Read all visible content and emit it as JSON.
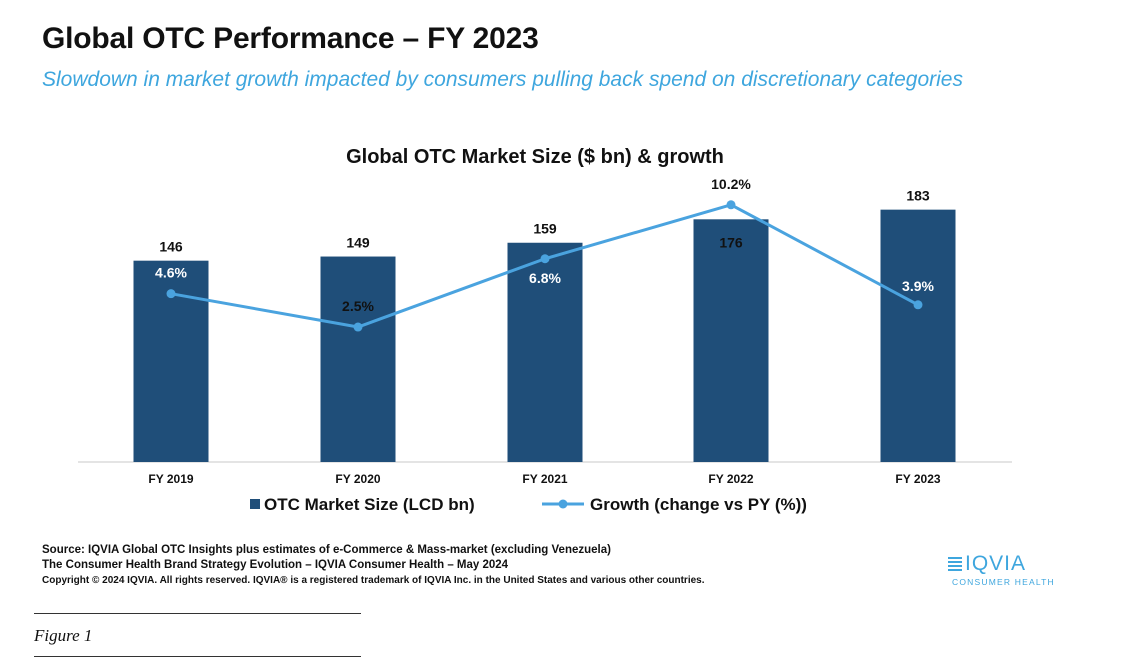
{
  "header": {
    "title": "Global OTC Performance – FY 2023",
    "subtitle": "Slowdown in market growth impacted by consumers pulling back spend on discretionary categories"
  },
  "chart_data": {
    "type": "bar",
    "title": "Global OTC Market Size ($ bn) & growth",
    "categories": [
      "FY 2019",
      "FY 2020",
      "FY 2021",
      "FY 2022",
      "FY 2023"
    ],
    "series": [
      {
        "name": "OTC Market Size (LCD bn)",
        "type": "bar",
        "values": [
          146,
          149,
          159,
          176,
          183
        ],
        "labels": [
          "146",
          "149",
          "159",
          "176",
          "183"
        ],
        "color": "#1f4e79"
      },
      {
        "name": "Growth (change vs PY (%))",
        "type": "line",
        "values": [
          4.6,
          2.5,
          6.8,
          10.2,
          3.9
        ],
        "labels": [
          "4.6%",
          "2.5%",
          "6.8%",
          "10.2%",
          "3.9%"
        ],
        "color": "#4aa3df"
      }
    ],
    "bar_axis_range": [
      0,
      190
    ],
    "growth_axis_range": [
      -6,
      10.5
    ],
    "legend_position": "bottom",
    "grid": false
  },
  "footer": {
    "source_line": "Source: IQVIA Global OTC Insights plus estimates of   e-Commerce & Mass-market (excluding Venezuela)",
    "citation_line": "The Consumer Health Brand Strategy Evolution – IQVIA Consumer Health  – May 2024",
    "copyright_line": "Copyright © 2024 IQVIA. All rights reserved. IQVIA® is a registered trademark of IQVIA Inc. in the United States and various other countries.",
    "logo_name": "IQVIA",
    "logo_tagline": "CONSUMER HEALTH",
    "figure_caption": "Figure 1"
  },
  "colors": {
    "bar": "#1f4e79",
    "line": "#4aa3df",
    "subtitle": "#3ea6de"
  }
}
